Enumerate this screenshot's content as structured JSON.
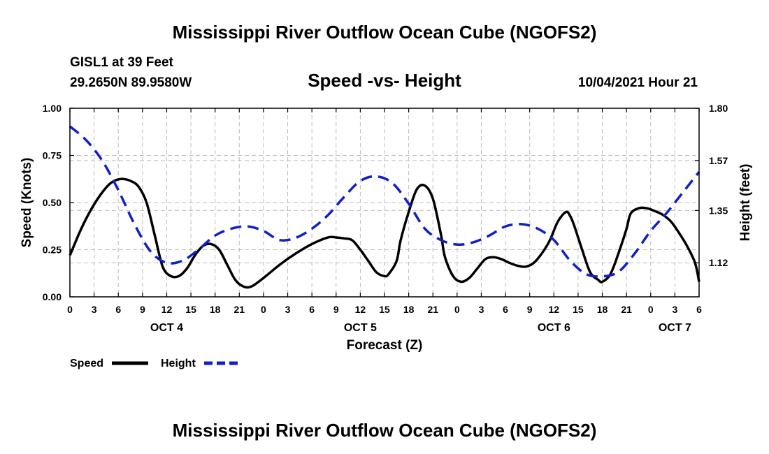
{
  "header": {
    "title": "Mississippi River Outflow Ocean Cube (NGOFS2)",
    "station": "GISL1 at 39 Feet",
    "coords": "29.2650N  89.9580W",
    "subtitle": "Speed -vs- Height",
    "datetime": "10/04/2021 Hour 21",
    "footer_title": "Mississippi River Outflow Ocean Cube (NGOFS2)"
  },
  "chart_data": {
    "type": "line",
    "title": "Speed -vs- Height",
    "xlabel": "Forecast (Z)",
    "ylabel": "Speed (Knots)",
    "y2label": "Height (feet)",
    "xlim": [
      0,
      78
    ],
    "ylim": [
      0,
      1.0
    ],
    "y2lim": [
      0.97,
      1.8
    ],
    "x_ticks": [
      0,
      3,
      6,
      9,
      12,
      15,
      18,
      21,
      24,
      27,
      30,
      33,
      36,
      39,
      42,
      45,
      48,
      51,
      54,
      57,
      60,
      63,
      66,
      69,
      72,
      75,
      78
    ],
    "x_tick_labels": [
      "0",
      "3",
      "6",
      "9",
      "12",
      "15",
      "18",
      "21",
      "0",
      "3",
      "6",
      "9",
      "12",
      "15",
      "18",
      "21",
      "0",
      "3",
      "6",
      "9",
      "12",
      "15",
      "18",
      "21",
      "0",
      "3",
      "6"
    ],
    "y_ticks": [
      0,
      0.25,
      0.5,
      0.75,
      1.0
    ],
    "y_tick_labels": [
      "0.00",
      "0.25",
      "0.50",
      "0.75",
      "1.00"
    ],
    "y2_ticks": [
      1.12,
      1.35,
      1.57,
      1.8
    ],
    "y2_tick_labels": [
      "1.12",
      "1.35",
      "1.57",
      "1.80"
    ],
    "day_labels": [
      {
        "x": 12,
        "label": "OCT 4"
      },
      {
        "x": 36,
        "label": "OCT 5"
      },
      {
        "x": 60,
        "label": "OCT 6"
      },
      {
        "x": 75,
        "label": "OCT 7"
      }
    ],
    "grid": true,
    "legend_position": "bottom-left",
    "series": [
      {
        "name": "Speed",
        "axis": "left",
        "color": "#000000",
        "style": "solid",
        "x": [
          0,
          1.5,
          3,
          4.5,
          5.5,
          6.5,
          7.5,
          8.5,
          9.5,
          10.5,
          11.5,
          12.5,
          13.5,
          14.5,
          15.5,
          16.5,
          17.5,
          18.5,
          19.5,
          20.5,
          21.5,
          22.5,
          24,
          26,
          28,
          30,
          32,
          33,
          34,
          35,
          36,
          37,
          38,
          39,
          39.5,
          40.5,
          41,
          42,
          43,
          44,
          45,
          46,
          46.5,
          47.5,
          48.5,
          49.5,
          50.5,
          51.5,
          52.5,
          53.5,
          54.5,
          55.5,
          56.5,
          57.5,
          58.5,
          59.5,
          60.5,
          61.5,
          62,
          62.5,
          63.5,
          64.5,
          65.5,
          66,
          67,
          68,
          69,
          69.5,
          70.5,
          71.5,
          72.5,
          73.5,
          74.5,
          75.5,
          76.5,
          77.5,
          78
        ],
        "values": [
          0.22,
          0.37,
          0.49,
          0.58,
          0.615,
          0.625,
          0.615,
          0.585,
          0.5,
          0.33,
          0.16,
          0.11,
          0.11,
          0.15,
          0.22,
          0.27,
          0.28,
          0.25,
          0.17,
          0.09,
          0.055,
          0.055,
          0.1,
          0.17,
          0.23,
          0.28,
          0.315,
          0.315,
          0.31,
          0.3,
          0.25,
          0.19,
          0.13,
          0.11,
          0.12,
          0.19,
          0.3,
          0.45,
          0.57,
          0.59,
          0.52,
          0.33,
          0.21,
          0.11,
          0.08,
          0.1,
          0.15,
          0.2,
          0.21,
          0.2,
          0.18,
          0.165,
          0.16,
          0.18,
          0.23,
          0.3,
          0.4,
          0.45,
          0.43,
          0.38,
          0.25,
          0.13,
          0.09,
          0.08,
          0.12,
          0.23,
          0.36,
          0.44,
          0.47,
          0.47,
          0.455,
          0.435,
          0.4,
          0.34,
          0.27,
          0.18,
          0.08
        ]
      },
      {
        "name": "Height",
        "axis": "right",
        "color": "#1020c8",
        "style": "dashed",
        "x": [
          0,
          2,
          4,
          6,
          8,
          10,
          12,
          14,
          16,
          18,
          20,
          22,
          24,
          26,
          28,
          30,
          32,
          34,
          36,
          38,
          40,
          42,
          44,
          46,
          48,
          50,
          52,
          54,
          56,
          58,
          60,
          62,
          64,
          66,
          68,
          70,
          72,
          74,
          76,
          78
        ],
        "values": [
          1.72,
          1.66,
          1.57,
          1.44,
          1.29,
          1.17,
          1.12,
          1.13,
          1.18,
          1.24,
          1.27,
          1.28,
          1.26,
          1.22,
          1.23,
          1.27,
          1.33,
          1.41,
          1.48,
          1.5,
          1.47,
          1.38,
          1.27,
          1.22,
          1.2,
          1.21,
          1.24,
          1.28,
          1.29,
          1.27,
          1.22,
          1.13,
          1.07,
          1.06,
          1.08,
          1.16,
          1.26,
          1.34,
          1.43,
          1.52
        ]
      }
    ]
  },
  "legend": {
    "speed_label": "Speed",
    "height_label": "Height"
  }
}
